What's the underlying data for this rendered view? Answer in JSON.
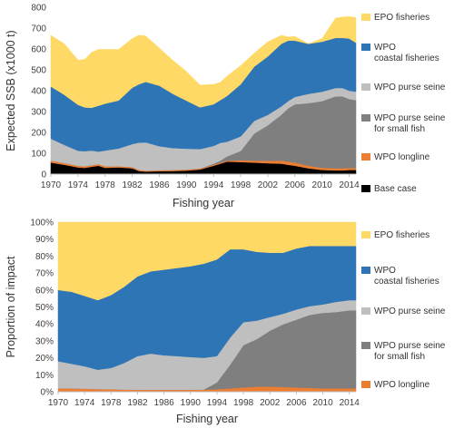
{
  "chart_data": [
    {
      "type": "area",
      "stacked": true,
      "xlabel": "Fishing year",
      "ylabel": "Expected SSB (x1000 t)",
      "xlim": [
        1970,
        2015
      ],
      "ylim": [
        0,
        800
      ],
      "yticks": [
        "0",
        "100",
        "200",
        "300",
        "400",
        "500",
        "600",
        "700",
        "800"
      ],
      "xticks": [
        "1970",
        "1974",
        "1978",
        "1982",
        "1986",
        "1990",
        "1994",
        "1998",
        "2002",
        "2006",
        "2010",
        "2014"
      ],
      "grid": false,
      "legend_position": "right",
      "x": [
        1970,
        1972,
        1974,
        1975,
        1976,
        1977,
        1978,
        1980,
        1982,
        1983,
        1984,
        1986,
        1988,
        1990,
        1992,
        1994,
        1995,
        1996,
        1998,
        2000,
        2002,
        2004,
        2005,
        2006,
        2008,
        2010,
        2012,
        2013,
        2014,
        2015
      ],
      "series": [
        {
          "name": "Base case",
          "color": "#000000",
          "values": [
            55,
            45,
            32,
            30,
            35,
            40,
            30,
            32,
            28,
            15,
            12,
            14,
            15,
            17,
            22,
            40,
            50,
            60,
            58,
            55,
            52,
            50,
            45,
            40,
            28,
            20,
            18,
            18,
            20,
            20
          ]
        },
        {
          "name": "WPO longline",
          "color": "#ED7D31",
          "values": [
            10,
            8,
            8,
            8,
            8,
            8,
            8,
            6,
            6,
            6,
            5,
            5,
            5,
            5,
            5,
            5,
            5,
            5,
            8,
            10,
            12,
            15,
            15,
            15,
            12,
            10,
            10,
            10,
            10,
            10
          ]
        },
        {
          "name": "WPO purse seine for small fish",
          "color": "#7F7F7F",
          "values": [
            0,
            0,
            0,
            0,
            0,
            0,
            0,
            0,
            0,
            0,
            0,
            0,
            0,
            0,
            0,
            5,
            10,
            20,
            45,
            130,
            170,
            220,
            255,
            280,
            300,
            320,
            345,
            345,
            330,
            325
          ]
        },
        {
          "name": "WPO purse seine",
          "color": "#BFBFBF",
          "values": [
            105,
            87,
            72,
            72,
            70,
            60,
            75,
            85,
            110,
            130,
            135,
            115,
            105,
            100,
            93,
            85,
            85,
            70,
            70,
            60,
            50,
            40,
            35,
            35,
            45,
            45,
            40,
            40,
            40,
            40
          ]
        },
        {
          "name": "WPO coastal fisheries",
          "color": "#2E75B6",
          "values": [
            250,
            240,
            220,
            210,
            205,
            220,
            225,
            230,
            270,
            280,
            290,
            290,
            260,
            230,
            200,
            200,
            205,
            220,
            250,
            260,
            280,
            300,
            290,
            270,
            240,
            240,
            240,
            240,
            250,
            235
          ]
        },
        {
          "name": "EPO fisheries",
          "color": "#FFD966",
          "values": [
            245,
            245,
            215,
            230,
            265,
            270,
            260,
            245,
            236,
            235,
            220,
            180,
            160,
            140,
            107,
            95,
            85,
            95,
            89,
            65,
            70,
            40,
            18,
            20,
            0,
            15,
            95,
            100,
            105,
            120
          ]
        }
      ]
    },
    {
      "type": "area",
      "stacked": true,
      "xlabel": "Fishing year",
      "ylabel": "Proportion of impact",
      "xlim": [
        1970,
        2015
      ],
      "ylim": [
        0,
        100
      ],
      "yticks": [
        "0%",
        "10%",
        "20%",
        "30%",
        "40%",
        "50%",
        "60%",
        "70%",
        "80%",
        "90%",
        "100%"
      ],
      "xticks": [
        "1970",
        "1974",
        "1978",
        "1982",
        "1986",
        "1990",
        "1994",
        "1998",
        "2002",
        "2006",
        "2010",
        "2014"
      ],
      "grid": false,
      "legend_position": "right",
      "x": [
        1970,
        1972,
        1974,
        1976,
        1978,
        1980,
        1982,
        1984,
        1986,
        1988,
        1990,
        1992,
        1994,
        1996,
        1998,
        2000,
        2002,
        2004,
        2006,
        2008,
        2010,
        2012,
        2014,
        2015
      ],
      "series": [
        {
          "name": "WPO longline",
          "color": "#ED7D31",
          "values": [
            2,
            2,
            1.8,
            1.6,
            1.5,
            1.3,
            1.2,
            1.2,
            1.2,
            1.2,
            1.2,
            1.3,
            1.5,
            2,
            2.5,
            3,
            3,
            2.8,
            2.5,
            2.3,
            2,
            2,
            2,
            2
          ]
        },
        {
          "name": "WPO purse seine for small fish",
          "color": "#7F7F7F",
          "values": [
            0,
            0,
            0,
            0,
            0,
            0,
            0,
            0,
            0,
            0,
            0,
            0,
            4,
            14,
            25,
            28,
            33,
            37,
            40,
            43,
            44.5,
            45,
            46,
            46
          ]
        },
        {
          "name": "WPO purse seine",
          "color": "#BFBFBF",
          "values": [
            16,
            14.5,
            13.2,
            11.4,
            12.5,
            15.7,
            19.8,
            21.3,
            20.3,
            19.8,
            19.3,
            18.7,
            15.5,
            16,
            13.5,
            11,
            8,
            6.2,
            6,
            5.2,
            5,
            6,
            6,
            6
          ]
        },
        {
          "name": "WPO coastal fisheries",
          "color": "#2E75B6",
          "values": [
            42,
            42.5,
            41.5,
            41,
            43,
            45,
            47,
            48.5,
            50.5,
            52,
            53.5,
            55.5,
            57,
            52,
            43,
            40.5,
            38,
            36,
            36,
            35.5,
            34.5,
            33,
            32,
            32
          ]
        },
        {
          "name": "EPO fisheries",
          "color": "#FFD966",
          "values": [
            40,
            41,
            43.5,
            46,
            43,
            38,
            32,
            29,
            28,
            27,
            26,
            24.5,
            22,
            16,
            16,
            17.5,
            18,
            18,
            15.5,
            14,
            14,
            14,
            14,
            14
          ]
        }
      ]
    }
  ]
}
